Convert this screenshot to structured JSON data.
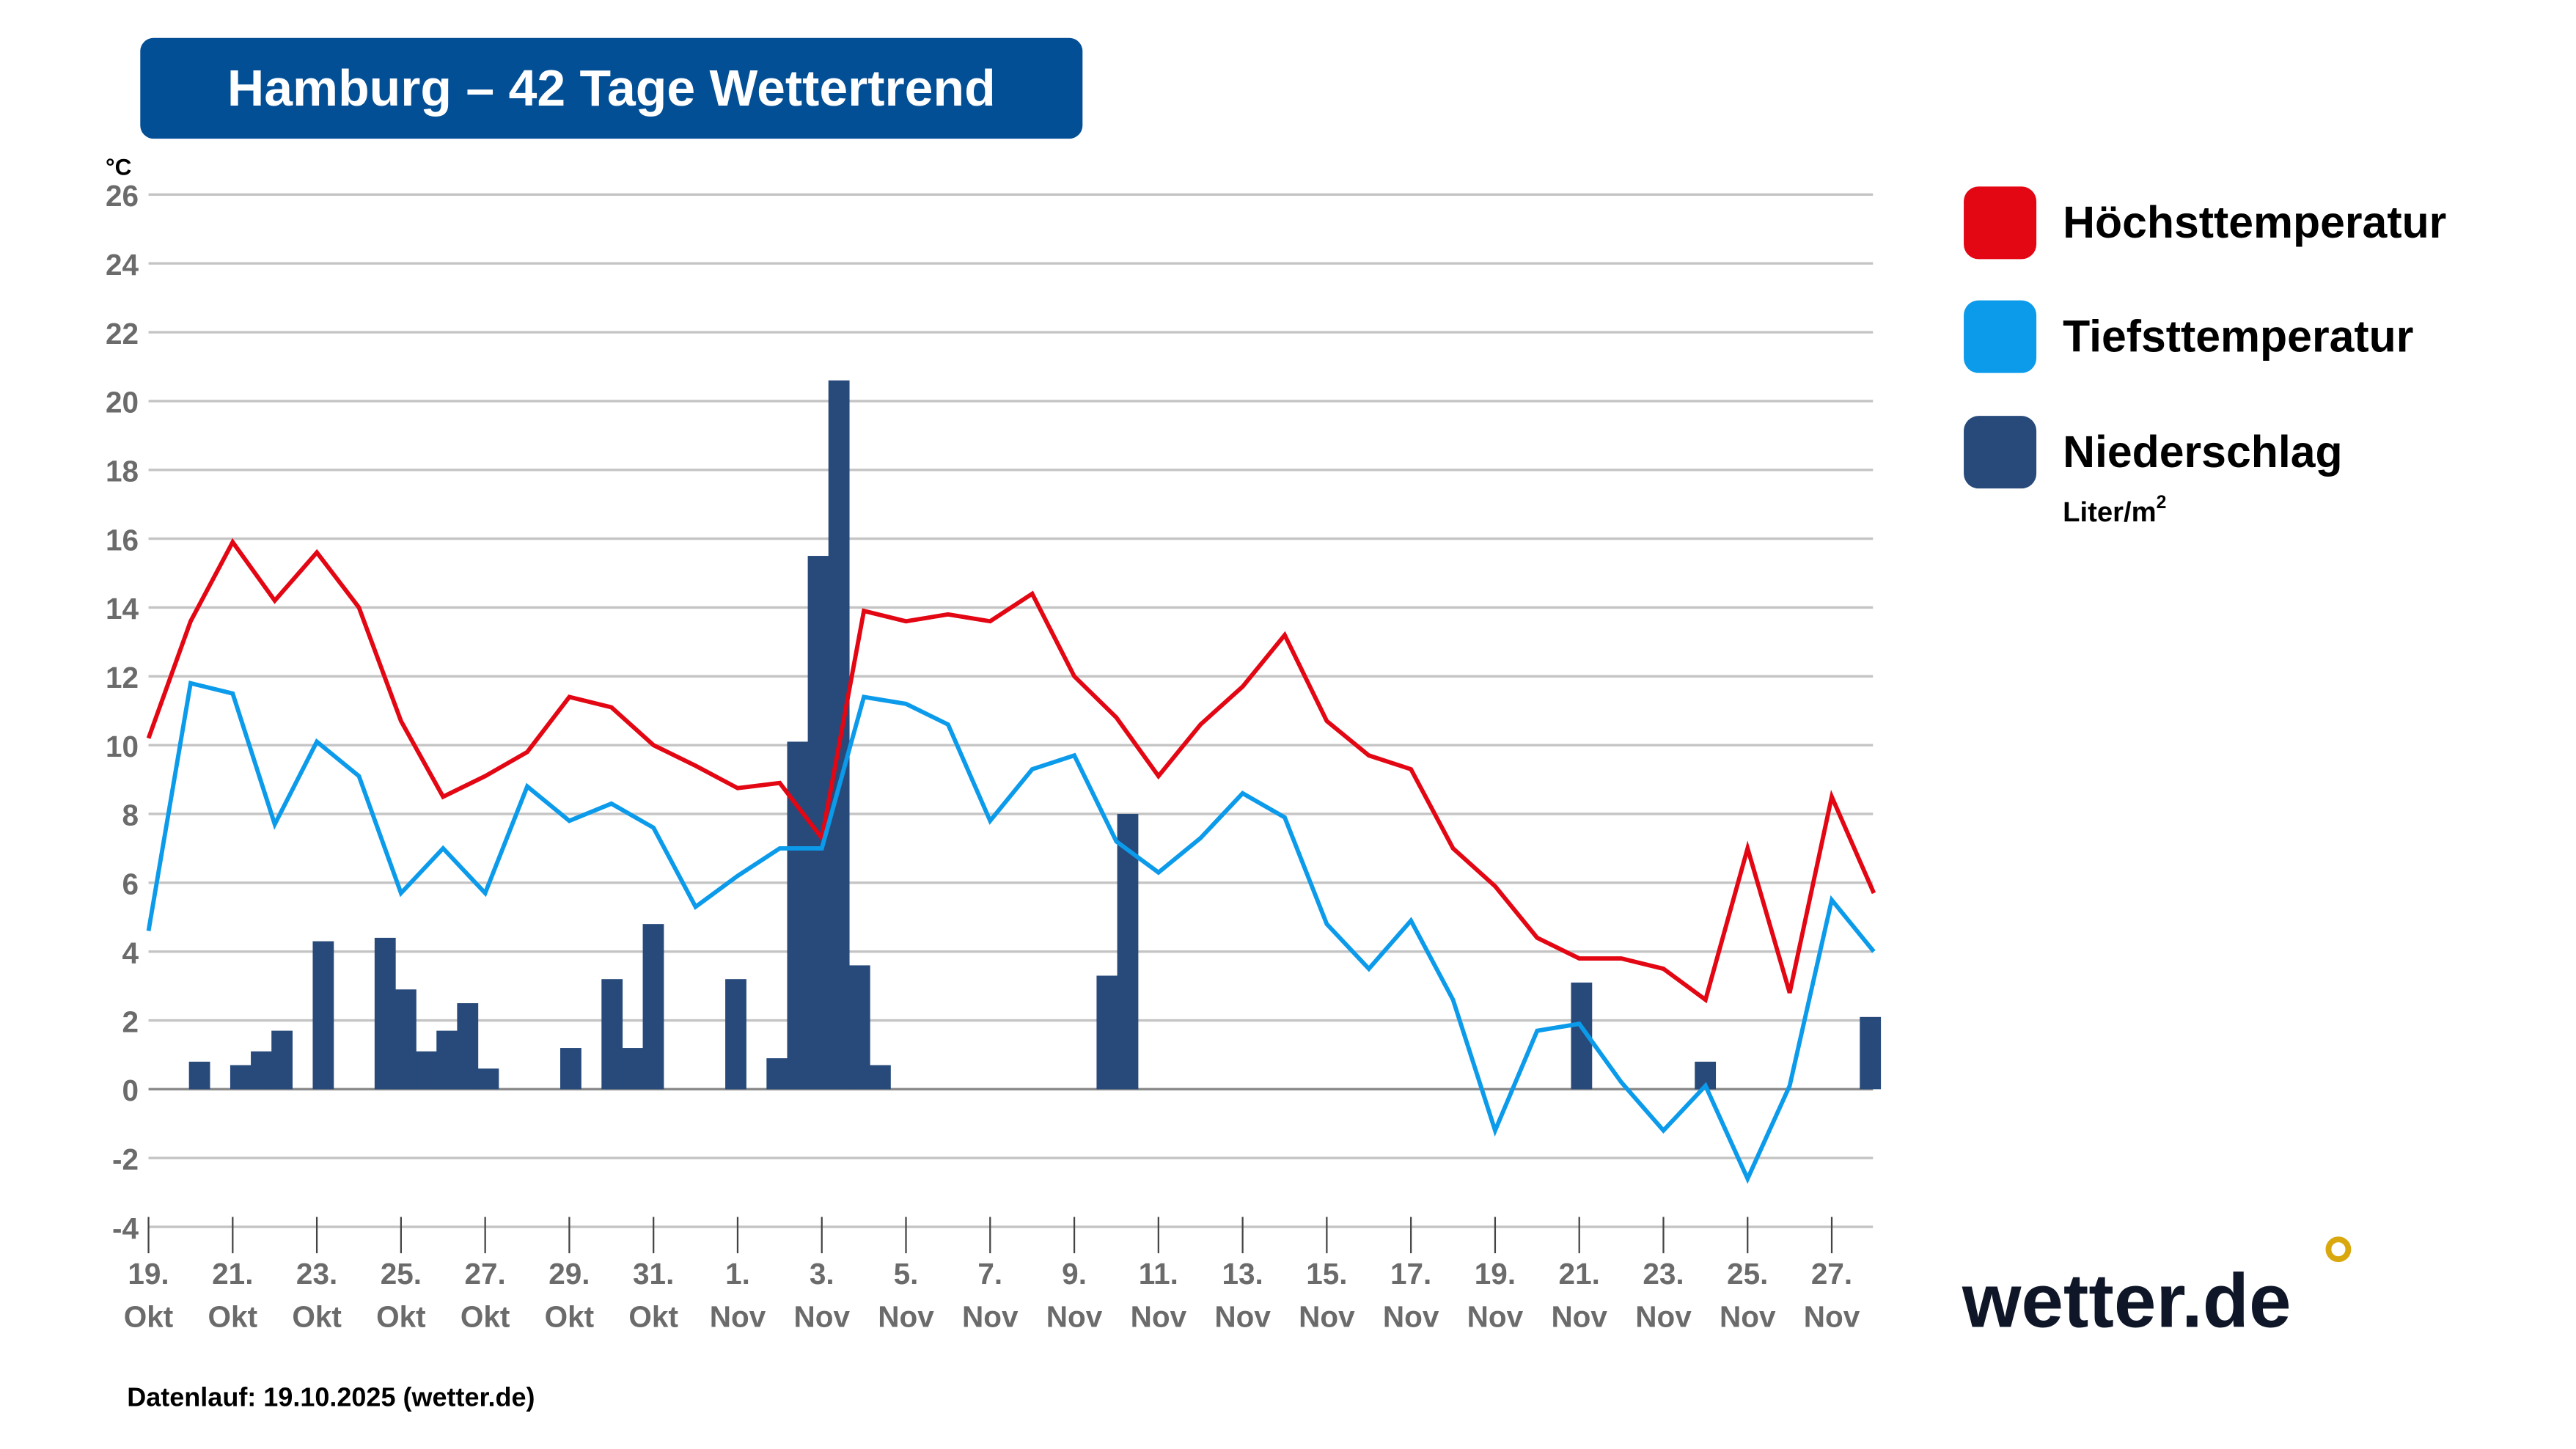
{
  "title": "Hamburg – 42 Tage Wettertrend",
  "footer": "Datenlauf: 19.10.2025 (wetter.de)",
  "logo": "wetter.de",
  "colors": {
    "title_bg": "#034f96",
    "high": "#e30613",
    "low": "#0b9bea",
    "precip": "#274a7b",
    "logo_dot": "#d9a80e"
  },
  "chart_data": {
    "type": "line+bar",
    "ylabel": "°C",
    "ylim": [
      -4,
      26
    ],
    "yticks": [
      -4,
      -2,
      0,
      2,
      4,
      6,
      8,
      10,
      12,
      14,
      16,
      18,
      20,
      22,
      24,
      26
    ],
    "grid": true,
    "legend_position": "right",
    "x_tick_labels": [
      [
        "19.",
        "Okt"
      ],
      [
        "21.",
        "Okt"
      ],
      [
        "23.",
        "Okt"
      ],
      [
        "25.",
        "Okt"
      ],
      [
        "27.",
        "Okt"
      ],
      [
        "29.",
        "Okt"
      ],
      [
        "31.",
        "Okt"
      ],
      [
        "1.",
        "Nov"
      ],
      [
        "3.",
        "Nov"
      ],
      [
        "5.",
        "Nov"
      ],
      [
        "7.",
        "Nov"
      ],
      [
        "9.",
        "Nov"
      ],
      [
        "11.",
        "Nov"
      ],
      [
        "13.",
        "Nov"
      ],
      [
        "15.",
        "Nov"
      ],
      [
        "17.",
        "Nov"
      ],
      [
        "19.",
        "Nov"
      ],
      [
        "21.",
        "Nov"
      ],
      [
        "23.",
        "Nov"
      ],
      [
        "25.",
        "Nov"
      ],
      [
        "27.",
        "Nov"
      ]
    ],
    "series": [
      {
        "name": "Höchsttemperatur",
        "kind": "line",
        "color": "#e30613",
        "values": [
          10.2,
          13.6,
          15.9,
          14.2,
          15.6,
          14.0,
          10.7,
          8.5,
          9.1,
          9.8,
          11.4,
          11.1,
          10.0,
          9.4,
          8.75,
          8.9,
          7.3,
          13.9,
          13.6,
          13.8,
          13.6,
          14.4,
          12.0,
          10.8,
          9.1,
          10.6,
          11.7,
          13.2,
          10.7,
          9.7,
          9.3,
          7.0,
          5.9,
          4.4,
          3.8,
          3.8,
          3.5,
          2.6,
          7.0,
          2.8,
          8.5,
          5.7
        ]
      },
      {
        "name": "Tiefsttemperatur",
        "kind": "line",
        "color": "#0b9bea",
        "values": [
          4.6,
          11.8,
          11.5,
          7.7,
          10.1,
          9.1,
          5.7,
          7.0,
          5.7,
          8.8,
          7.8,
          8.3,
          7.6,
          5.3,
          6.2,
          7.0,
          7.0,
          11.4,
          11.2,
          10.6,
          7.8,
          9.3,
          9.7,
          7.2,
          6.3,
          7.3,
          8.6,
          7.9,
          4.8,
          3.5,
          4.9,
          2.6,
          -1.2,
          1.7,
          1.9,
          0.2,
          -1.2,
          0.1,
          -2.6,
          0.1,
          5.5,
          4.0
        ]
      },
      {
        "name": "Niederschlag",
        "unit": "Liter/m²",
        "kind": "bar",
        "color": "#274a7b",
        "resolution": "half-day",
        "values": [
          0,
          0,
          0.8,
          0,
          0.7,
          1.1,
          1.7,
          0,
          4.3,
          0,
          0,
          4.4,
          2.9,
          1.1,
          1.7,
          2.5,
          0.6,
          0,
          0,
          0,
          1.2,
          0,
          3.2,
          1.2,
          4.8,
          0,
          0,
          0,
          3.2,
          0,
          0.9,
          10.1,
          15.5,
          20.6,
          3.6,
          0.7,
          0,
          0,
          0,
          0,
          0,
          0,
          0,
          0,
          0,
          0,
          3.3,
          8.0,
          0,
          0,
          0,
          0,
          0,
          0,
          0,
          0,
          0,
          0,
          0,
          0,
          0,
          0,
          0,
          0,
          0,
          0,
          0,
          0,
          0,
          3.1,
          0,
          0,
          0,
          0,
          0,
          0.8,
          0,
          0,
          0,
          0,
          0,
          0,
          0,
          2.1
        ]
      }
    ]
  },
  "legend": {
    "items": [
      {
        "label": "Höchsttemperatur",
        "color": "#e30613"
      },
      {
        "label": "Tiefsttemperatur",
        "color": "#0b9bea"
      },
      {
        "label": "Niederschlag",
        "color": "#274a7b",
        "sub": "Liter/m",
        "sup": "2"
      }
    ]
  }
}
